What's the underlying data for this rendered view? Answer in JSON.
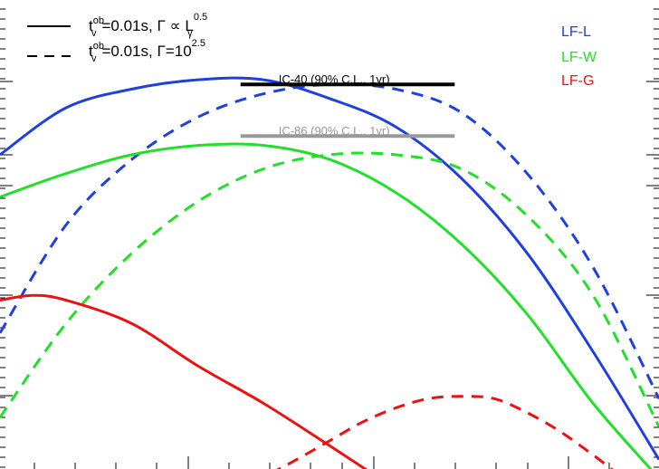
{
  "chart_data": {
    "type": "line",
    "title": "",
    "xlabel": "",
    "ylabel": "",
    "x_scale": "log",
    "y_scale": "log",
    "xlim": [
      0,
      1
    ],
    "ylim": [
      0,
      1
    ],
    "legend_position": "top-left",
    "style_legend": [
      {
        "style": "solid",
        "label_main": "t",
        "label_sup": "ob",
        "label_sub": "v",
        "label_rest": "=0.01s, Γ ∝ L",
        "label_rest_sub": "γ",
        "label_rest_sup": "0.5"
      },
      {
        "style": "dashed",
        "label_main": "t",
        "label_sup": "ob",
        "label_sub": "v",
        "label_rest": "=0.01s,  Γ=10",
        "label_rest_sup": "2.5"
      }
    ],
    "color_legend": [
      {
        "name": "LF-L",
        "color": "#1f3fe0"
      },
      {
        "name": "LF-W",
        "color": "#22e02a"
      },
      {
        "name": "LF-G",
        "color": "#ee1111"
      }
    ],
    "series": [
      {
        "name": "LF-L",
        "style": "solid",
        "color": "#1f3fe0",
        "x": [
          0.0,
          0.1,
          0.2,
          0.3,
          0.4,
          0.5,
          0.6,
          0.7,
          0.8,
          0.9,
          1.0
        ],
        "y": [
          0.67,
          0.77,
          0.81,
          0.83,
          0.83,
          0.79,
          0.73,
          0.62,
          0.46,
          0.25,
          0.02
        ]
      },
      {
        "name": "LF-L",
        "style": "dashed",
        "color": "#1f3fe0",
        "x": [
          0.0,
          0.1,
          0.2,
          0.3,
          0.4,
          0.5,
          0.6,
          0.7,
          0.8,
          0.9,
          1.0
        ],
        "y": [
          0.29,
          0.52,
          0.66,
          0.75,
          0.8,
          0.82,
          0.81,
          0.76,
          0.63,
          0.43,
          0.15
        ]
      },
      {
        "name": "LF-W",
        "style": "solid",
        "color": "#22e02a",
        "x": [
          0.0,
          0.1,
          0.2,
          0.3,
          0.4,
          0.5,
          0.6,
          0.7,
          0.8,
          0.9,
          1.0
        ],
        "y": [
          0.58,
          0.63,
          0.67,
          0.69,
          0.69,
          0.66,
          0.59,
          0.48,
          0.33,
          0.14,
          -0.02
        ]
      },
      {
        "name": "LF-W",
        "style": "dashed",
        "color": "#22e02a",
        "x": [
          0.0,
          0.1,
          0.2,
          0.3,
          0.4,
          0.5,
          0.6,
          0.7,
          0.8,
          0.9,
          1.0
        ],
        "y": [
          0.11,
          0.31,
          0.46,
          0.57,
          0.64,
          0.67,
          0.67,
          0.64,
          0.54,
          0.37,
          0.09
        ]
      },
      {
        "name": "LF-G",
        "style": "solid",
        "color": "#ee1111",
        "x": [
          0.0,
          0.05,
          0.1,
          0.2,
          0.3,
          0.4,
          0.5,
          0.565
        ],
        "y": [
          0.36,
          0.37,
          0.36,
          0.31,
          0.22,
          0.14,
          0.05,
          -0.01
        ]
      },
      {
        "name": "LF-G",
        "style": "dashed",
        "color": "#ee1111",
        "x": [
          0.41,
          0.45,
          0.5,
          0.55,
          0.6,
          0.65,
          0.7,
          0.75,
          0.8,
          0.85,
          0.9,
          0.95,
          1.0
        ],
        "y": [
          -0.01,
          0.02,
          0.06,
          0.1,
          0.13,
          0.15,
          0.155,
          0.15,
          0.12,
          0.08,
          0.03,
          -0.02,
          -0.04
        ]
      }
    ],
    "annotations": [
      {
        "text": "IC-40 (90% C.L., 1yr)",
        "x_start": 0.365,
        "x_end": 0.69,
        "y": 0.82,
        "color": "#000000"
      },
      {
        "text": "IC-86 (90% C.L., 1yr)",
        "x_start": 0.365,
        "x_end": 0.69,
        "y": 0.71,
        "color": "#999999"
      }
    ]
  }
}
